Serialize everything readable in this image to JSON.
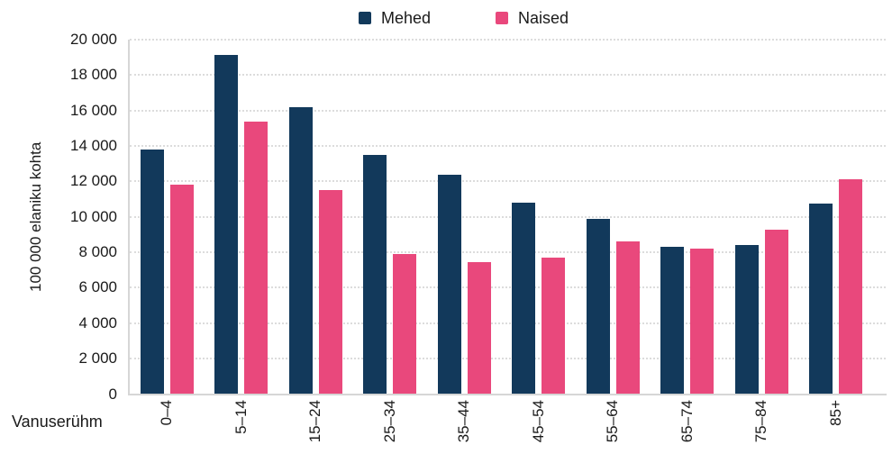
{
  "chart_data": {
    "type": "bar",
    "title": "",
    "xlabel": "Vanuserühm",
    "ylabel": "100 000 elaniku kohta",
    "ylim": [
      0,
      20000
    ],
    "grid": "horizontal-dotted",
    "legend_position": "top-center",
    "categories": [
      "0–4",
      "5–14",
      "15–24",
      "25–34",
      "35–44",
      "45–54",
      "55–64",
      "65–74",
      "75–84",
      "85+"
    ],
    "series": [
      {
        "name": "Mehed",
        "color": "#12395B",
        "values": [
          13800,
          19150,
          16200,
          13500,
          12400,
          10800,
          9900,
          8300,
          8400,
          10750
        ]
      },
      {
        "name": "Naised",
        "color": "#E9487C",
        "values": [
          11800,
          15400,
          11500,
          7900,
          7450,
          7700,
          8600,
          8200,
          9300,
          12100
        ]
      }
    ],
    "yticks": [
      {
        "value": 0,
        "label": "0"
      },
      {
        "value": 2000,
        "label": "2 000"
      },
      {
        "value": 4000,
        "label": "4 000"
      },
      {
        "value": 6000,
        "label": "6 000"
      },
      {
        "value": 8000,
        "label": "8 000"
      },
      {
        "value": 10000,
        "label": "10 000"
      },
      {
        "value": 12000,
        "label": "12 000"
      },
      {
        "value": 14000,
        "label": "14 000"
      },
      {
        "value": 16000,
        "label": "16 000"
      },
      {
        "value": 18000,
        "label": "18 000"
      },
      {
        "value": 20000,
        "label": "20 000"
      }
    ]
  },
  "colors": {
    "mehed": "#12395B",
    "naised": "#E9487C",
    "grid": "#DCDCDC",
    "axis": "#D6D6D6",
    "text": "#1A1A1A",
    "background": "#FFFFFF"
  }
}
